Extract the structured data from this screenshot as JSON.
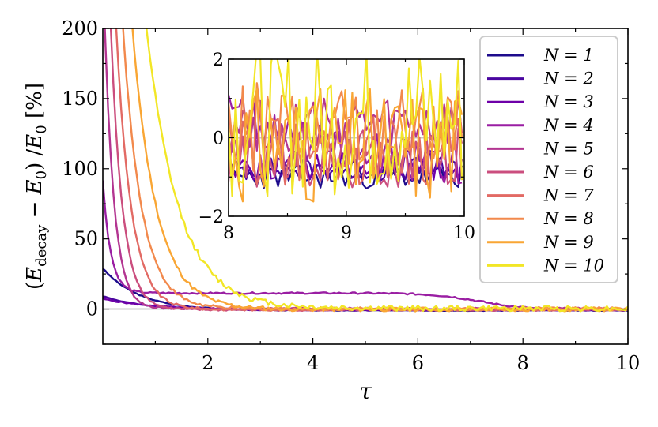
{
  "chart_data": {
    "type": "line",
    "xlabel": "τ",
    "ylabel": "(E_decay − E_0) / E_0 [%]",
    "ylabel_parts": {
      "open": "(",
      "e1": "E",
      "sub1": "decay",
      "minus": " − ",
      "e2": "E",
      "sub2": "0",
      "close": ") /",
      "e3": "E",
      "sub3": "0",
      "unit": " [%]"
    },
    "xlim": [
      0.0,
      10.0
    ],
    "ylim": [
      -25,
      200
    ],
    "xticks": [
      2,
      4,
      6,
      8,
      10
    ],
    "yticks": [
      0,
      50,
      100,
      150,
      200
    ],
    "xtick_labels": [
      "2",
      "4",
      "6",
      "8",
      "10"
    ],
    "ytick_labels": [
      "0",
      "50",
      "100",
      "150",
      "200"
    ],
    "reference_line_y": 0,
    "legend": {
      "placement": "top-right"
    },
    "series": [
      {
        "name": "N = 1",
        "color": "#1d0b8c",
        "tau0": 30,
        "decay": 0.7,
        "asym": -1.0,
        "noise": 0.3
      },
      {
        "name": "N = 2",
        "color": "#4a06a0",
        "tau0": 10,
        "decay": 0.8,
        "asym": -0.8,
        "noise": 0.3
      },
      {
        "name": "N = 3",
        "color": "#6e00a8",
        "tau0": 8,
        "decay": 1.0,
        "asym": -0.7,
        "noise": 0.4
      },
      {
        "name": "N = 4",
        "color": "#9a1ea3",
        "tau0": 80,
        "decay": 0.15,
        "asym": 12,
        "noise": 0.6,
        "late_drop": 7.2
      },
      {
        "name": "N = 5",
        "color": "#b33591",
        "tau0": 250,
        "decay": 0.18,
        "asym": 0.3,
        "noise": 0.7
      },
      {
        "name": "N = 6",
        "color": "#cb4e7e",
        "tau0": 400,
        "decay": 0.22,
        "asym": -0.5,
        "noise": 0.8
      },
      {
        "name": "N = 7",
        "color": "#e26a64",
        "tau0": 500,
        "decay": 0.28,
        "asym": -0.3,
        "noise": 0.9
      },
      {
        "name": "N = 8",
        "color": "#f2894c",
        "tau0": 600,
        "decay": 0.35,
        "asym": 0.2,
        "noise": 1.2
      },
      {
        "name": "N = 9",
        "color": "#f9a634",
        "tau0": 700,
        "decay": 0.45,
        "asym": -0.2,
        "noise": 1.5
      },
      {
        "name": "N = 10",
        "color": "#f2e626",
        "tau0": 800,
        "decay": 0.6,
        "asym": 0.5,
        "noise": 2.0
      }
    ],
    "inset": {
      "xlim": [
        8,
        10
      ],
      "ylim": [
        -2,
        2
      ],
      "xticks": [
        8,
        9,
        10
      ],
      "yticks": [
        -2,
        0,
        2
      ],
      "xtick_labels": [
        "8",
        "9",
        "10"
      ],
      "ytick_labels": [
        "−2",
        "0",
        "2"
      ]
    }
  }
}
